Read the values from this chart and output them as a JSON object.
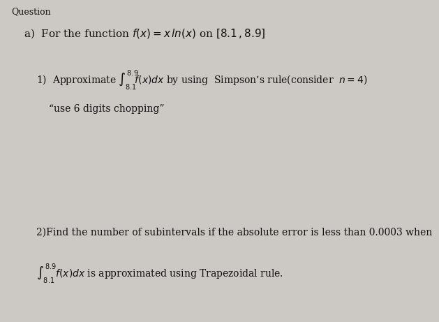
{
  "background_color": "#ccc8c3",
  "text_color": "#111111",
  "top_label": "Question",
  "header": "a)  For the function $f(x) = x\\, \\mathit{ln}(x)$ on $[8.1\\,,8.9]$",
  "p1_line1_pre": "1)  Approximate ",
  "p1_integral": "$\\int_{8.1}^{8.9}\\!\\! f(x)dx$",
  "p1_line1_post": " by using  Simpson’s rule(consider  $n{=}4$)",
  "p1_line2": "“use 6 digits chopping”",
  "p2_line1": "2)Find the number of subintervals if the absolute error is less than 0.0003 when",
  "p2_integral": "$\\int_{8.1}^{8.9} f(x)dx$",
  "p2_line2_post": " is approximated using Trapezoidal rule.",
  "font_size_top": 9,
  "font_size_header": 11,
  "font_size_body": 10
}
